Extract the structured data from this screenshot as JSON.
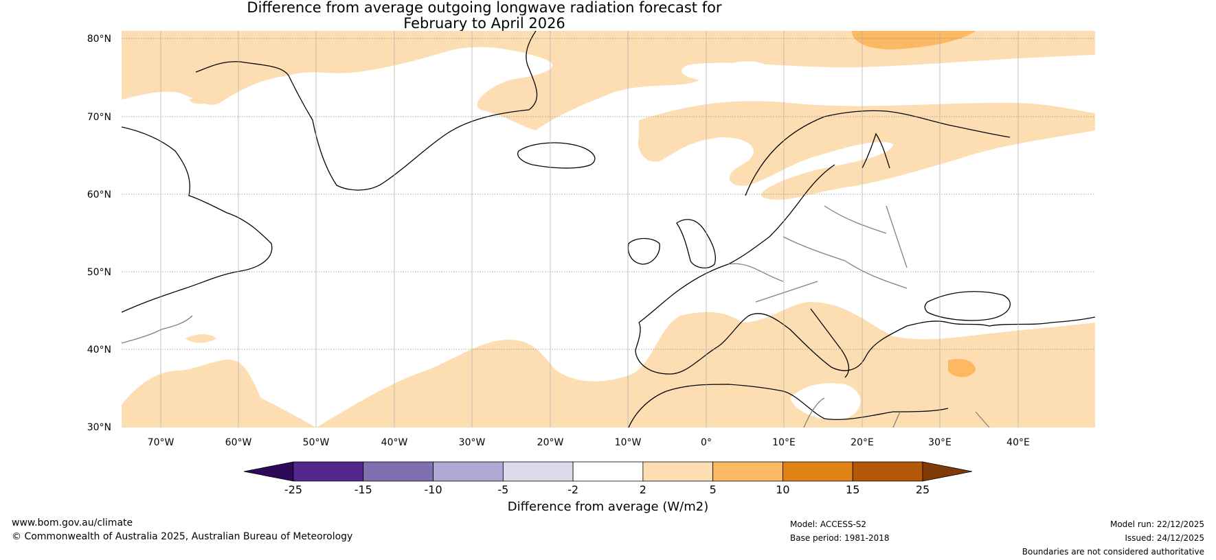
{
  "title_line1": "Difference from average outgoing longwave radiation forecast for",
  "title_line2": "February to April 2026",
  "lat_labels": [
    "80°N",
    "70°N",
    "60°N",
    "50°N",
    "40°N",
    "30°N"
  ],
  "lon_labels": [
    "70°W",
    "60°W",
    "50°W",
    "40°W",
    "30°W",
    "20°W",
    "10°W",
    "0°",
    "10°E",
    "20°E",
    "30°E",
    "40°E"
  ],
  "colorbar": {
    "ticks": [
      "-25",
      "-15",
      "-10",
      "-5",
      "-2",
      "2",
      "5",
      "10",
      "15",
      "25"
    ],
    "colors": [
      "#2d0a57",
      "#54278f",
      "#7f70b0",
      "#b1a8d3",
      "#dadaeb",
      "#ffffff",
      "#fddeb3",
      "#fdb863",
      "#e08214",
      "#b35806",
      "#7f3b08"
    ],
    "label": "Difference from average (W/m2)"
  },
  "footer": {
    "url": "www.bom.gov.au/climate",
    "copyright": "© Commonwealth of Australia 2025, Australian Bureau of Meteorology",
    "model": "Model: ACCESS-S2",
    "base_period": "Base period: 1981-2018",
    "model_run": "Model run: 22/12/2025",
    "issued": "Issued: 24/12/2025",
    "disclaimer": "Boundaries are not considered authoritative"
  },
  "colors": {
    "anomaly_light": "#fddeb3",
    "anomaly_mid": "#fdb863",
    "coast": "#000000",
    "border": "#808080"
  }
}
